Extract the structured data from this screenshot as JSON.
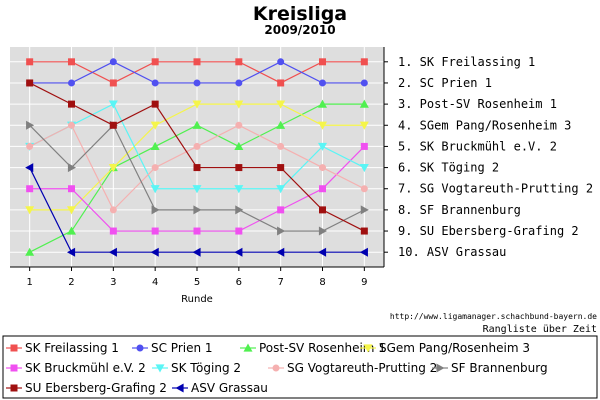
{
  "chart_data": {
    "type": "line",
    "title": "Kreisliga",
    "subtitle": "2009/2010",
    "xlabel": "Runde",
    "ylabel": "",
    "x": [
      1,
      2,
      3,
      4,
      5,
      6,
      7,
      8,
      9
    ],
    "ylim": [
      10.7,
      0.3
    ],
    "y_reversed": true,
    "grid": true,
    "rank_labels": [
      "1. SK Freilassing 1",
      "2. SC Prien 1",
      "3. Post-SV Rosenheim 1",
      "4. SGem Pang/Rosenheim 3",
      "5. SK Bruckmühl e.V. 2",
      "6. SK Töging 2",
      "7. SG Vogtareuth-Prutting 2",
      "8. SF Brannenburg",
      "9. SU Ebersberg-Grafing 2",
      "10. ASV Grassau"
    ],
    "series": [
      {
        "name": "SK Freilassing 1",
        "color": "#f05050",
        "marker": "square",
        "values": [
          1,
          1,
          2,
          1,
          1,
          1,
          2,
          1,
          1
        ]
      },
      {
        "name": "SC Prien 1",
        "color": "#5050f0",
        "marker": "circle",
        "values": [
          2,
          2,
          1,
          2,
          2,
          2,
          1,
          2,
          2
        ]
      },
      {
        "name": "Post-SV Rosenheim 1",
        "color": "#50f050",
        "marker": "triangle-up",
        "values": [
          10,
          9,
          6,
          5,
          4,
          5,
          4,
          3,
          3
        ]
      },
      {
        "name": "SGem Pang/Rosenheim 3",
        "color": "#f5f54a",
        "marker": "triangle-down",
        "values": [
          8,
          8,
          6,
          4,
          3,
          3,
          3,
          4,
          4
        ]
      },
      {
        "name": "SK Bruckmühl e.V. 2",
        "color": "#f050f0",
        "marker": "square",
        "values": [
          7,
          7,
          9,
          9,
          9,
          9,
          8,
          7,
          5
        ]
      },
      {
        "name": "SK Töging 2",
        "color": "#5af5f5",
        "marker": "triangle-down",
        "values": [
          5,
          4,
          3,
          7,
          7,
          7,
          7,
          5,
          6
        ]
      },
      {
        "name": "SG Vogtareuth-Prutting 2",
        "color": "#f5b0b0",
        "marker": "circle",
        "values": [
          5,
          4,
          8,
          6,
          5,
          4,
          5,
          6,
          7
        ]
      },
      {
        "name": "SF Brannenburg",
        "color": "#808080",
        "marker": "triangle-right",
        "values": [
          4,
          6,
          4,
          8,
          8,
          8,
          9,
          9,
          8
        ]
      },
      {
        "name": "SU Ebersberg-Grafing 2",
        "color": "#a01010",
        "marker": "square",
        "values": [
          2,
          3,
          4,
          3,
          6,
          6,
          6,
          8,
          9
        ]
      },
      {
        "name": "ASV Grassau",
        "color": "#0000b0",
        "marker": "triangle-left",
        "values": [
          6,
          10,
          10,
          10,
          10,
          10,
          10,
          10,
          10
        ]
      }
    ],
    "legend_position": "bottom",
    "source_text": "http://www.ligamanager.schachbund-bayern.de",
    "caption": "Rangliste über Zeit"
  }
}
